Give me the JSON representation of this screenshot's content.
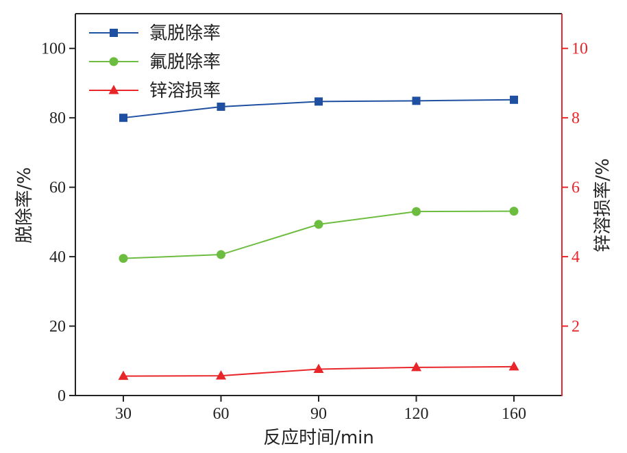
{
  "chart_data": {
    "type": "line",
    "x": [
      30,
      60,
      90,
      120,
      160
    ],
    "xlabel": "反应时间/min",
    "ylabel_left": "脱除率/%",
    "ylabel_right": "锌溶损率/%",
    "ylim_left": [
      0,
      110
    ],
    "ylim_right": [
      0,
      11
    ],
    "yticks_left": [
      0,
      20,
      40,
      60,
      80,
      100
    ],
    "yticks_right": [
      2,
      4,
      6,
      8,
      10
    ],
    "legend_position": "top-left",
    "series": [
      {
        "name": "氯脱除率",
        "axis": "left",
        "marker": "square",
        "color": "#1f4fa0",
        "values": [
          80.0,
          83.2,
          84.7,
          84.9,
          85.2
        ]
      },
      {
        "name": "氟脱除率",
        "axis": "left",
        "marker": "circle",
        "color": "#6cbd3f",
        "values": [
          39.5,
          40.6,
          49.3,
          53.0,
          53.1
        ]
      },
      {
        "name": "锌溶损率",
        "axis": "right",
        "marker": "triangle",
        "color": "#e8262a",
        "values": [
          0.56,
          0.57,
          0.76,
          0.81,
          0.83
        ]
      }
    ]
  }
}
